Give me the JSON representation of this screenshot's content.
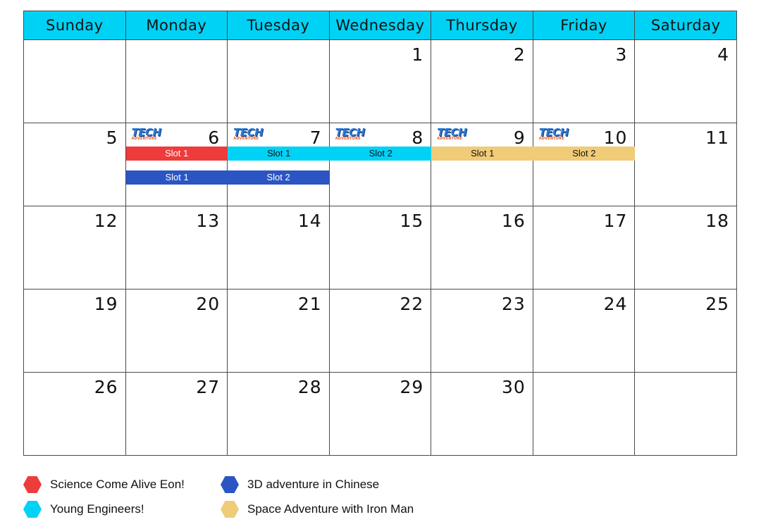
{
  "calendar": {
    "weekdays": [
      "Sunday",
      "Monday",
      "Tuesday",
      "Wednesday",
      "Thursday",
      "Friday",
      "Saturday"
    ],
    "weeks": [
      [
        "",
        "",
        "",
        "1",
        "2",
        "3",
        "4"
      ],
      [
        "5",
        "6",
        "7",
        "8",
        "9",
        "10",
        "11"
      ],
      [
        "12",
        "13",
        "14",
        "15",
        "16",
        "17",
        "18"
      ],
      [
        "19",
        "20",
        "21",
        "22",
        "23",
        "24",
        "25"
      ],
      [
        "26",
        "27",
        "28",
        "29",
        "30",
        "",
        ""
      ]
    ],
    "logo": {
      "main": "TECH",
      "sub": "ADVENTURE"
    },
    "events": [
      {
        "day": "6",
        "label": "Slot 1",
        "program": "Science Come Alive Eon!",
        "color": "#ee3b3b"
      },
      {
        "day": "6",
        "label": "Slot 1",
        "program": "3D adventure in Chinese",
        "color": "#2c55c4"
      },
      {
        "day": "7",
        "label": "Slot 1",
        "program": "Young Engineers!",
        "color": "#00d2f5"
      },
      {
        "day": "7",
        "label": "Slot 2",
        "program": "3D adventure in Chinese",
        "color": "#2c55c4"
      },
      {
        "day": "8",
        "label": "Slot 2",
        "program": "Young Engineers!",
        "color": "#00d2f5"
      },
      {
        "day": "9",
        "label": "Slot 1",
        "program": "Space Adventure with Iron Man",
        "color": "#f0cb78"
      },
      {
        "day": "10",
        "label": "Slot 2",
        "program": "Space Adventure with Iron Man",
        "color": "#f0cb78"
      }
    ]
  },
  "legend": [
    {
      "label": "Science Come Alive Eon!",
      "color": "#ee3b3b",
      "icon": "hexagon-icon"
    },
    {
      "label": "3D adventure in Chinese",
      "color": "#2c55c4",
      "icon": "hexagon-icon"
    },
    {
      "label": "Young Engineers!",
      "color": "#00d2f5",
      "icon": "hexagon-icon"
    },
    {
      "label": "Space Adventure with Iron Man",
      "color": "#f0cb78",
      "icon": "hexagon-icon"
    }
  ],
  "colors": {
    "header": "#00d2f5",
    "grid": "#4a4a4a"
  }
}
